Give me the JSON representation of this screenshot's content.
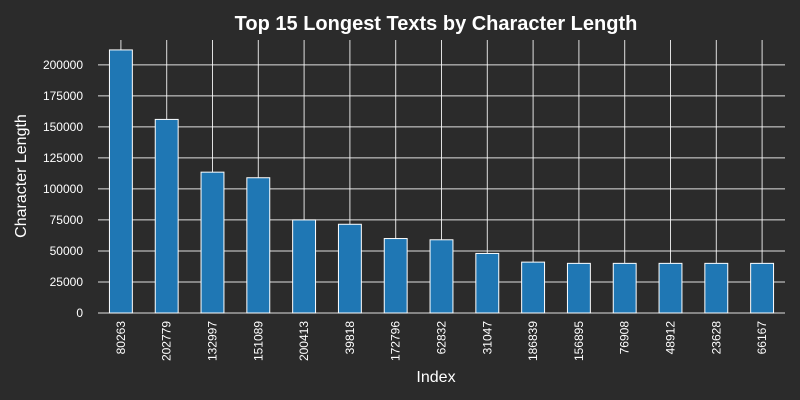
{
  "chart_data": {
    "type": "bar",
    "title": "Top 15 Longest Texts by Character Length",
    "xlabel": "Index",
    "ylabel": "Character Length",
    "categories": [
      "80263",
      "202779",
      "132997",
      "151089",
      "200413",
      "39818",
      "172796",
      "62832",
      "31047",
      "186839",
      "156895",
      "76908",
      "48912",
      "23628",
      "66167"
    ],
    "values": [
      212000,
      156000,
      113500,
      109000,
      75000,
      71500,
      60000,
      59000,
      48000,
      41000,
      40000,
      40000,
      40000,
      40000,
      40000
    ],
    "ylim": [
      0,
      220000
    ],
    "yticks": [
      0,
      25000,
      50000,
      75000,
      100000,
      125000,
      150000,
      175000,
      200000
    ],
    "grid": true,
    "legend": "none",
    "colors": {
      "background": "#2b2b2b",
      "bar": "#1f77b4",
      "bar_edge": "#ffffff",
      "text": "#ffffff",
      "grid": "#ffffff"
    }
  }
}
